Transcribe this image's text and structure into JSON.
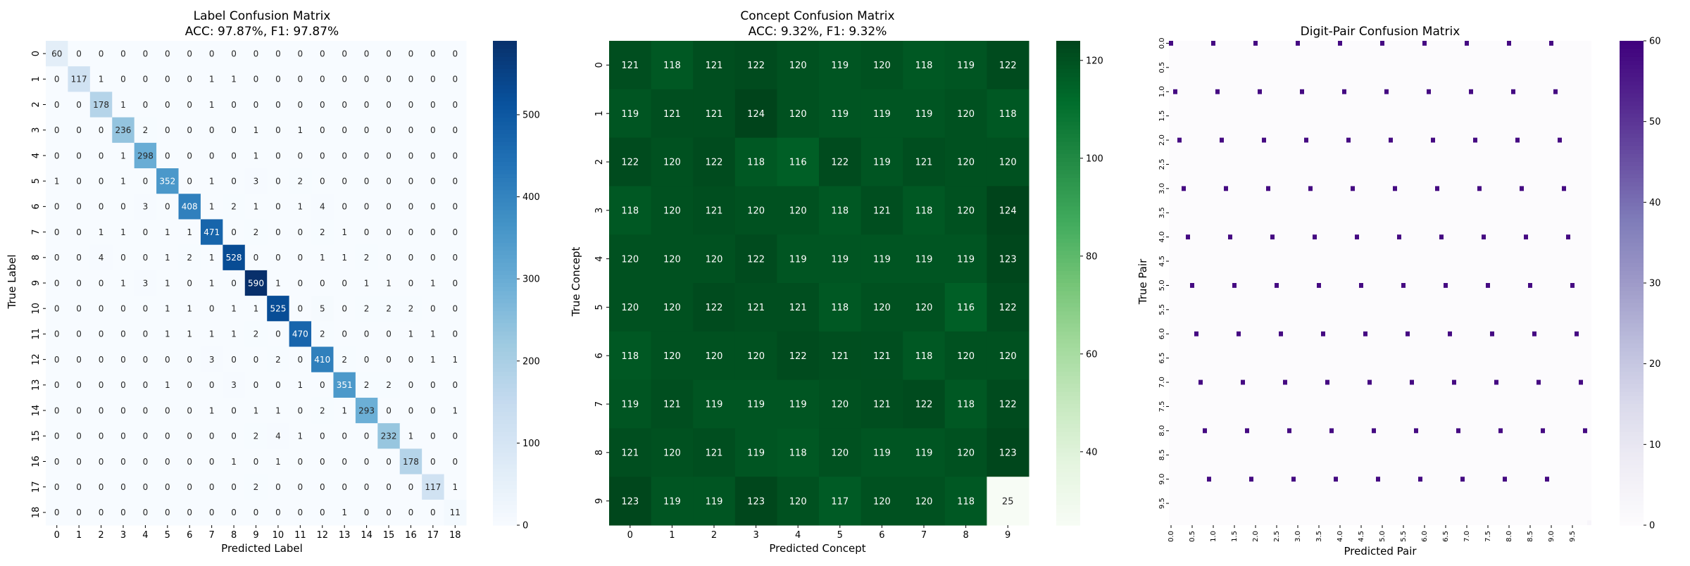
{
  "chart_data": [
    {
      "type": "heatmap",
      "title": "Label Confusion Matrix",
      "subtitle": "ACC: 97.87%, F1: 97.87%",
      "xlabel": "Predicted Label",
      "ylabel": "True Label",
      "x_ticks": [
        "0",
        "1",
        "2",
        "3",
        "4",
        "5",
        "6",
        "7",
        "8",
        "9",
        "10",
        "11",
        "12",
        "13",
        "14",
        "15",
        "16",
        "17",
        "18"
      ],
      "y_ticks": [
        "0",
        "1",
        "2",
        "3",
        "4",
        "5",
        "6",
        "7",
        "8",
        "9",
        "10",
        "11",
        "12",
        "13",
        "14",
        "15",
        "16",
        "17",
        "18"
      ],
      "colormap": "Blues",
      "colorbar": {
        "min": 0,
        "max": 590,
        "ticks": [
          "0",
          "100",
          "200",
          "300",
          "400",
          "500"
        ]
      },
      "show_values": true,
      "values": [
        [
          60,
          0,
          0,
          0,
          0,
          0,
          0,
          0,
          0,
          0,
          0,
          0,
          0,
          0,
          0,
          0,
          0,
          0,
          0
        ],
        [
          0,
          117,
          1,
          0,
          0,
          0,
          0,
          1,
          1,
          0,
          0,
          0,
          0,
          0,
          0,
          0,
          0,
          0,
          0
        ],
        [
          0,
          0,
          178,
          1,
          0,
          0,
          0,
          1,
          0,
          0,
          0,
          0,
          0,
          0,
          0,
          0,
          0,
          0,
          0
        ],
        [
          0,
          0,
          0,
          236,
          2,
          0,
          0,
          0,
          0,
          1,
          0,
          1,
          0,
          0,
          0,
          0,
          0,
          0,
          0
        ],
        [
          0,
          0,
          0,
          1,
          298,
          0,
          0,
          0,
          0,
          1,
          0,
          0,
          0,
          0,
          0,
          0,
          0,
          0,
          0
        ],
        [
          1,
          0,
          0,
          1,
          0,
          352,
          0,
          1,
          0,
          3,
          0,
          2,
          0,
          0,
          0,
          0,
          0,
          0,
          0
        ],
        [
          0,
          0,
          0,
          0,
          3,
          0,
          408,
          1,
          2,
          1,
          0,
          1,
          4,
          0,
          0,
          0,
          0,
          0,
          0
        ],
        [
          0,
          0,
          1,
          1,
          0,
          1,
          1,
          471,
          0,
          2,
          0,
          0,
          2,
          1,
          0,
          0,
          0,
          0,
          0
        ],
        [
          0,
          0,
          4,
          0,
          0,
          1,
          2,
          1,
          528,
          0,
          0,
          0,
          1,
          1,
          2,
          0,
          0,
          0,
          0
        ],
        [
          0,
          0,
          0,
          1,
          3,
          1,
          0,
          1,
          0,
          590,
          1,
          0,
          0,
          0,
          1,
          1,
          0,
          1,
          0
        ],
        [
          0,
          0,
          0,
          0,
          0,
          1,
          1,
          0,
          1,
          1,
          525,
          0,
          5,
          0,
          2,
          2,
          2,
          0,
          0
        ],
        [
          0,
          0,
          0,
          0,
          0,
          1,
          1,
          1,
          1,
          2,
          0,
          470,
          2,
          0,
          0,
          0,
          1,
          1,
          0
        ],
        [
          0,
          0,
          0,
          0,
          0,
          0,
          0,
          3,
          0,
          0,
          2,
          0,
          410,
          2,
          0,
          0,
          0,
          1,
          1
        ],
        [
          0,
          0,
          0,
          0,
          0,
          1,
          0,
          0,
          3,
          0,
          0,
          1,
          0,
          351,
          2,
          2,
          0,
          0,
          0
        ],
        [
          0,
          0,
          0,
          0,
          0,
          0,
          0,
          1,
          0,
          1,
          1,
          0,
          2,
          1,
          293,
          0,
          0,
          0,
          1
        ],
        [
          0,
          0,
          0,
          0,
          0,
          0,
          0,
          0,
          0,
          2,
          4,
          1,
          0,
          0,
          0,
          232,
          1,
          0,
          0
        ],
        [
          0,
          0,
          0,
          0,
          0,
          0,
          0,
          0,
          1,
          0,
          1,
          0,
          0,
          0,
          0,
          0,
          178,
          0,
          0
        ],
        [
          0,
          0,
          0,
          0,
          0,
          0,
          0,
          0,
          0,
          2,
          0,
          0,
          0,
          0,
          0,
          0,
          0,
          117,
          1
        ],
        [
          0,
          0,
          0,
          0,
          0,
          0,
          0,
          0,
          0,
          0,
          0,
          0,
          0,
          1,
          0,
          0,
          0,
          0,
          11
        ]
      ]
    },
    {
      "type": "heatmap",
      "title": "Concept Confusion Matrix",
      "subtitle": "ACC: 9.32%, F1: 9.32%",
      "xlabel": "Predicted Concept",
      "ylabel": "True Concept",
      "x_ticks": [
        "0",
        "1",
        "2",
        "3",
        "4",
        "5",
        "6",
        "7",
        "8",
        "9"
      ],
      "y_ticks": [
        "0",
        "1",
        "2",
        "3",
        "4",
        "5",
        "6",
        "7",
        "8",
        "9"
      ],
      "colormap": "Greens",
      "colorbar": {
        "min": 25,
        "max": 124,
        "ticks": [
          "40",
          "60",
          "80",
          "100",
          "120"
        ]
      },
      "show_values": true,
      "values": [
        [
          121,
          118,
          121,
          122,
          120,
          119,
          120,
          118,
          119,
          122
        ],
        [
          119,
          121,
          121,
          124,
          120,
          119,
          119,
          119,
          120,
          118
        ],
        [
          122,
          120,
          122,
          118,
          116,
          122,
          119,
          121,
          120,
          120
        ],
        [
          118,
          120,
          121,
          120,
          120,
          118,
          121,
          118,
          120,
          124
        ],
        [
          120,
          120,
          120,
          122,
          119,
          119,
          119,
          119,
          119,
          123
        ],
        [
          120,
          120,
          122,
          121,
          121,
          118,
          120,
          120,
          116,
          122
        ],
        [
          118,
          120,
          120,
          120,
          122,
          121,
          121,
          118,
          120,
          120
        ],
        [
          119,
          121,
          119,
          119,
          119,
          120,
          121,
          122,
          118,
          122
        ],
        [
          121,
          120,
          121,
          119,
          118,
          120,
          119,
          119,
          120,
          123
        ],
        [
          123,
          119,
          119,
          123,
          120,
          117,
          120,
          120,
          118,
          25
        ]
      ]
    },
    {
      "type": "heatmap",
      "title": "Digit-Pair Confusion Matrix",
      "xlabel": "Predicted Pair",
      "ylabel": "True Pair",
      "x_ticks": [
        "0.0",
        "0.5",
        "1.0",
        "1.5",
        "2.0",
        "2.5",
        "3.0",
        "3.5",
        "4.0",
        "4.5",
        "5.0",
        "5.5",
        "6.0",
        "6.5",
        "7.0",
        "7.5",
        "8.0",
        "8.5",
        "9.0",
        "9.5"
      ],
      "y_ticks": [
        "0.0",
        "0.5",
        "1.0",
        "1.5",
        "2.0",
        "2.5",
        "3.0",
        "3.5",
        "4.0",
        "4.5",
        "5.0",
        "5.5",
        "6.0",
        "6.5",
        "7.0",
        "7.5",
        "8.0",
        "8.5",
        "9.0",
        "9.5"
      ],
      "colormap": "Purples",
      "colorbar": {
        "min": 0,
        "max": 60,
        "ticks": [
          "0",
          "10",
          "20",
          "30",
          "40",
          "50",
          "60"
        ]
      },
      "show_values": false,
      "grid_size": 100,
      "note_structure": "sparse matrix; nonzero cells (value ~55-60) listed as [true_index, predicted_index]",
      "nonzero_value": 58,
      "last_cell": {
        "cell": [
          99,
          99
        ],
        "value": 3
      },
      "nonzero_cells": [
        [
          0,
          0
        ],
        [
          0,
          10
        ],
        [
          0,
          20
        ],
        [
          0,
          30
        ],
        [
          0,
          40
        ],
        [
          0,
          50
        ],
        [
          0,
          60
        ],
        [
          0,
          70
        ],
        [
          0,
          80
        ],
        [
          0,
          90
        ],
        [
          10,
          1
        ],
        [
          10,
          11
        ],
        [
          10,
          21
        ],
        [
          10,
          31
        ],
        [
          10,
          41
        ],
        [
          10,
          51
        ],
        [
          10,
          61
        ],
        [
          10,
          71
        ],
        [
          10,
          81
        ],
        [
          10,
          91
        ],
        [
          20,
          2
        ],
        [
          20,
          12
        ],
        [
          20,
          22
        ],
        [
          20,
          32
        ],
        [
          20,
          42
        ],
        [
          20,
          52
        ],
        [
          20,
          62
        ],
        [
          20,
          72
        ],
        [
          20,
          82
        ],
        [
          20,
          92
        ],
        [
          30,
          3
        ],
        [
          30,
          13
        ],
        [
          30,
          23
        ],
        [
          30,
          33
        ],
        [
          30,
          43
        ],
        [
          30,
          53
        ],
        [
          30,
          63
        ],
        [
          30,
          73
        ],
        [
          30,
          83
        ],
        [
          30,
          93
        ],
        [
          40,
          4
        ],
        [
          40,
          14
        ],
        [
          40,
          24
        ],
        [
          40,
          34
        ],
        [
          40,
          44
        ],
        [
          40,
          54
        ],
        [
          40,
          64
        ],
        [
          40,
          74
        ],
        [
          40,
          84
        ],
        [
          40,
          94
        ],
        [
          50,
          5
        ],
        [
          50,
          15
        ],
        [
          50,
          25
        ],
        [
          50,
          35
        ],
        [
          50,
          45
        ],
        [
          50,
          55
        ],
        [
          50,
          65
        ],
        [
          50,
          75
        ],
        [
          50,
          85
        ],
        [
          50,
          95
        ],
        [
          60,
          6
        ],
        [
          60,
          16
        ],
        [
          60,
          26
        ],
        [
          60,
          36
        ],
        [
          60,
          46
        ],
        [
          60,
          56
        ],
        [
          60,
          66
        ],
        [
          60,
          76
        ],
        [
          60,
          86
        ],
        [
          60,
          96
        ],
        [
          70,
          7
        ],
        [
          70,
          17
        ],
        [
          70,
          27
        ],
        [
          70,
          37
        ],
        [
          70,
          47
        ],
        [
          70,
          57
        ],
        [
          70,
          67
        ],
        [
          70,
          77
        ],
        [
          70,
          87
        ],
        [
          70,
          97
        ],
        [
          80,
          8
        ],
        [
          80,
          18
        ],
        [
          80,
          28
        ],
        [
          80,
          38
        ],
        [
          80,
          48
        ],
        [
          80,
          58
        ],
        [
          80,
          68
        ],
        [
          80,
          78
        ],
        [
          80,
          88
        ],
        [
          80,
          98
        ],
        [
          90,
          9
        ],
        [
          90,
          19
        ],
        [
          90,
          29
        ],
        [
          90,
          39
        ],
        [
          90,
          49
        ],
        [
          90,
          59
        ],
        [
          90,
          69
        ],
        [
          90,
          79
        ],
        [
          90,
          89
        ]
      ]
    }
  ]
}
